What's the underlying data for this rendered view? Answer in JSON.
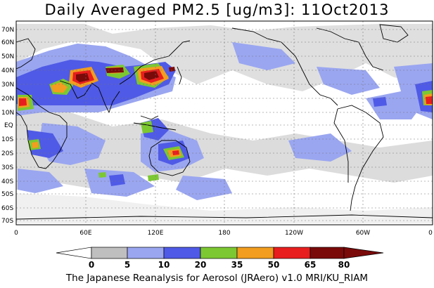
{
  "title": "Daily Averaged PM2.5 [ug/m3]: 11Oct2013",
  "footer": "The Japanese Reanalysis for Aerosol (JRAero) v1.0 MRI/KU_RIAM",
  "lat_labels": [
    "70N",
    "60N",
    "50N",
    "40N",
    "30N",
    "20N",
    "10N",
    "EQ",
    "10S",
    "20S",
    "30S",
    "40S",
    "50S",
    "60S",
    "70S"
  ],
  "lon_labels": [
    "0",
    "60E",
    "120E",
    "180",
    "120W",
    "60W",
    "0"
  ],
  "colorbar": {
    "ticks": [
      "0",
      "5",
      "10",
      "20",
      "35",
      "50",
      "65",
      "80"
    ],
    "colors": [
      "#ffffff",
      "#bfbfbf",
      "#9aa6f0",
      "#4f5ae6",
      "#7cc832",
      "#f29d1f",
      "#e81e1e",
      "#7a0a0a"
    ]
  }
}
